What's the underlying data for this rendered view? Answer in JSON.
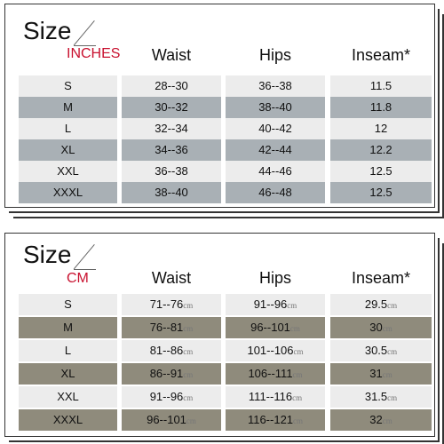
{
  "inches_table": {
    "title": "Size",
    "unit": "INCHES",
    "headers": [
      "Waist",
      "Hips",
      "Inseam*"
    ],
    "rows": [
      {
        "size": "S",
        "waist": "28--30",
        "hips": "36--38",
        "inseam": "11.5",
        "shade": "light"
      },
      {
        "size": "M",
        "waist": "30--32",
        "hips": "38--40",
        "inseam": "11.8",
        "shade": "dark"
      },
      {
        "size": "L",
        "waist": "32--34",
        "hips": "40--42",
        "inseam": "12",
        "shade": "light"
      },
      {
        "size": "XL",
        "waist": "34--36",
        "hips": "42--44",
        "inseam": "12.2",
        "shade": "dark"
      },
      {
        "size": "XXL",
        "waist": "36--38",
        "hips": "44--46",
        "inseam": "12.5",
        "shade": "light"
      },
      {
        "size": "XXXL",
        "waist": "38--40",
        "hips": "46--48",
        "inseam": "12.5",
        "shade": "dark"
      }
    ]
  },
  "cm_table": {
    "title": "Size",
    "unit": "CM",
    "headers": [
      "Waist",
      "Hips",
      "Inseam*"
    ],
    "cell_unit": "cm",
    "rows": [
      {
        "size": "S",
        "waist": "71--76",
        "hips": "91--96",
        "inseam": "29.5",
        "shade": "light"
      },
      {
        "size": "M",
        "waist": "76--81",
        "hips": "96--101",
        "inseam": "30",
        "shade": "dark"
      },
      {
        "size": "L",
        "waist": "81--86",
        "hips": "101--106",
        "inseam": "30.5",
        "shade": "light"
      },
      {
        "size": "XL",
        "waist": "86--91",
        "hips": "106--111",
        "inseam": "31",
        "shade": "dark"
      },
      {
        "size": "XXL",
        "waist": "91--96",
        "hips": "111--116",
        "inseam": "31.5",
        "shade": "light"
      },
      {
        "size": "XXXL",
        "waist": "96--101",
        "hips": "116--121",
        "inseam": "32",
        "shade": "dark"
      }
    ]
  },
  "colors": {
    "unit_tag": "#c8102e",
    "row_light": "#ececec",
    "row_dark_inches": "#a9b0b5",
    "row_dark_cm": "#8f8b7c"
  }
}
